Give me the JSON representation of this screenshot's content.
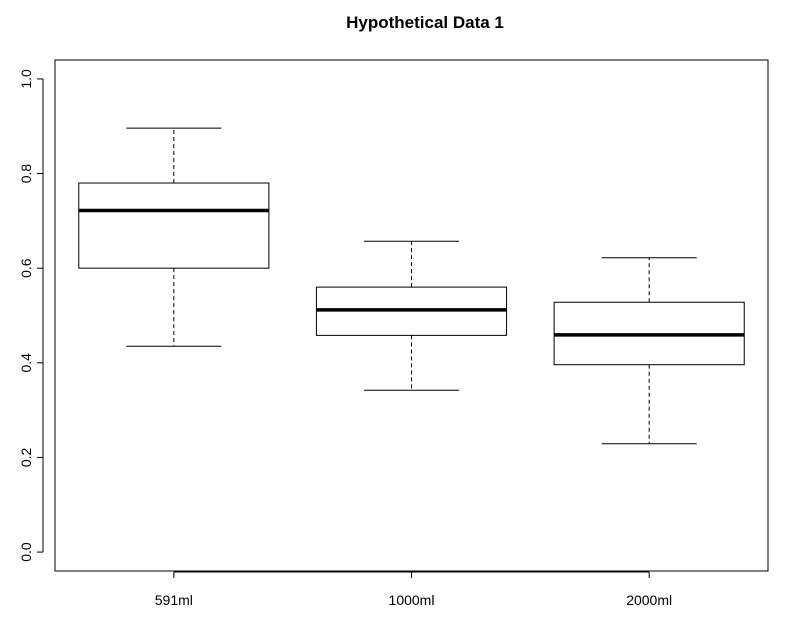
{
  "chart_data": {
    "type": "boxplot",
    "title": "Hypothetical Data 1",
    "xlabel": "",
    "ylabel": "",
    "categories": [
      "591ml",
      "1000ml",
      "2000ml"
    ],
    "boxes": [
      {
        "category": "591ml",
        "min": 0.435,
        "q1": 0.6,
        "median": 0.722,
        "q3": 0.78,
        "max": 0.896
      },
      {
        "category": "1000ml",
        "min": 0.342,
        "q1": 0.458,
        "median": 0.512,
        "q3": 0.56,
        "max": 0.657
      },
      {
        "category": "2000ml",
        "min": 0.229,
        "q1": 0.396,
        "median": 0.459,
        "q3": 0.528,
        "max": 0.622
      }
    ],
    "ylim": [
      -0.04,
      1.04
    ],
    "yticks": [
      0.0,
      0.2,
      0.4,
      0.6,
      0.8,
      1.0
    ],
    "ytick_labels": [
      "0.0",
      "0.2",
      "0.4",
      "0.6",
      "0.8",
      "1.0"
    ],
    "grid": false,
    "legend": "none",
    "colors": {
      "line": "#000000",
      "box_fill": "#ffffff",
      "background": "#ffffff"
    }
  }
}
